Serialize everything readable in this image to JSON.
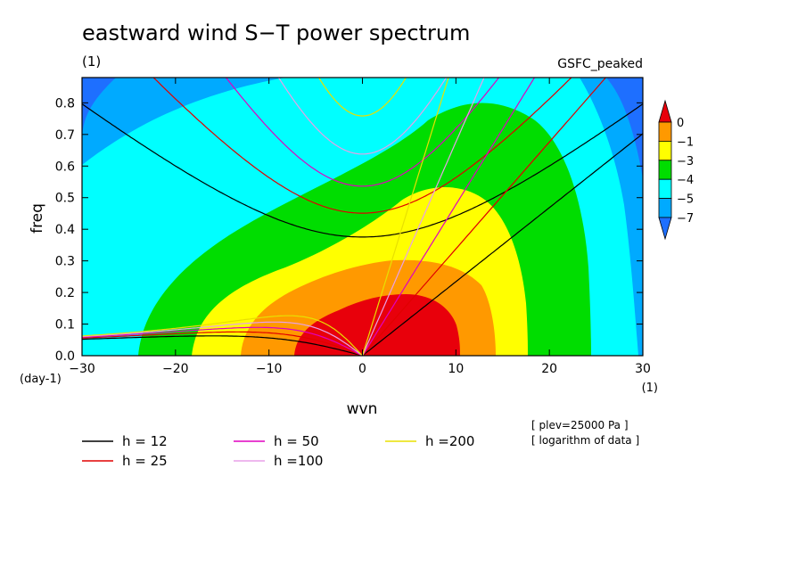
{
  "chart_data": {
    "type": "heatmap",
    "title": "eastward wind S−T power spectrum",
    "subtitle_left": "(1)",
    "subtitle_right": "GSFC_peaked",
    "xlabel": "wvn",
    "ylabel": "freq",
    "x_unit": "(1)",
    "y_unit": "(day-1)",
    "xlim": [
      -30,
      30
    ],
    "ylim": [
      0,
      0.88
    ],
    "x_ticks": [
      -30,
      -20,
      -10,
      0,
      10,
      20,
      30
    ],
    "x_tick_labels": [
      "−30",
      "−20",
      "−10",
      "0",
      "10",
      "20",
      "30"
    ],
    "y_ticks": [
      0,
      0.1,
      0.2,
      0.3,
      0.4,
      0.5,
      0.6,
      0.7,
      0.8
    ],
    "y_tick_labels": [
      "0.0",
      "0.1",
      "0.2",
      "0.3",
      "0.4",
      "0.5",
      "0.6",
      "0.7",
      "0.8"
    ],
    "colorbar": {
      "levels": [
        0,
        -1,
        -3,
        -4,
        -5,
        -7
      ],
      "labels": [
        "0",
        "−1",
        "−3",
        "−4",
        "−5",
        "−7"
      ],
      "colors": [
        "#e8000b",
        "#ff9900",
        "#ffff00",
        "#00dd00",
        "#00ffff",
        "#00aaff",
        "#0055ff"
      ],
      "top_color": "#e8000b",
      "bottom_color": "#1e6fff"
    },
    "annotations": [
      "[ plev=25000 Pa ]",
      "[ logarithm of data ]"
    ],
    "dispersion_curves": [
      {
        "label": "h = 12",
        "h": 12,
        "color": "#000000"
      },
      {
        "label": "h = 25",
        "h": 25,
        "color": "#e00000"
      },
      {
        "label": "h = 50",
        "h": 50,
        "color": "#e000c0"
      },
      {
        "label": "h =100",
        "h": 100,
        "color": "#e8a0e8"
      },
      {
        "label": "h =200",
        "h": 200,
        "color": "#e8e000"
      }
    ],
    "legend_placement": "bottom-left"
  }
}
